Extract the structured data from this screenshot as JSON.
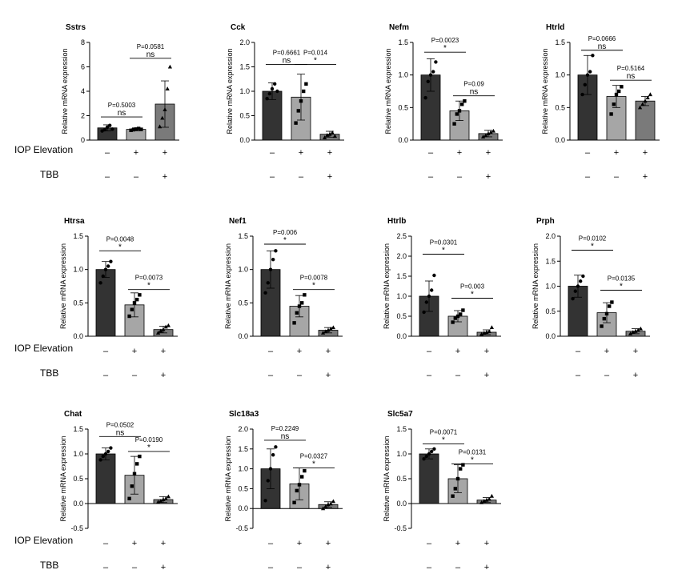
{
  "row_labels": {
    "iop": "IOP Elevation",
    "tbb": "TBB"
  },
  "colors": {
    "bar_fills": [
      "#333333",
      "#a6a6a6",
      "#7a7a7a"
    ],
    "bar_stroke": "#000000",
    "text": "#000000"
  },
  "chart_data": [
    {
      "type": "bar",
      "title": "Sstrs",
      "ylabel": "Relative mRNA expression",
      "ylim": [
        0,
        8
      ],
      "yticks": [
        "0",
        "2",
        "4",
        "6",
        "8"
      ],
      "values": [
        1.0,
        0.88,
        2.95
      ],
      "errors": [
        0.25,
        0.12,
        1.9
      ],
      "points": [
        [
          0.75,
          0.85,
          1.05,
          1.2,
          0.9
        ],
        [
          0.8,
          0.85,
          0.9,
          0.95,
          0.88
        ],
        [
          1.1,
          1.8,
          2.5,
          4.2,
          6.0
        ]
      ],
      "markers": [
        "circle",
        "square",
        "triangle"
      ],
      "iop": [
        "–",
        "+",
        "+"
      ],
      "tbb": [
        "–",
        "–",
        "+"
      ],
      "comparisons": [
        {
          "from": 0,
          "to": 1,
          "y": 1.9,
          "p": "P=0.5003",
          "sig": "ns"
        },
        {
          "from": 1,
          "to": 2,
          "y": 6.7,
          "p": "P=0.0581",
          "sig": "ns"
        }
      ]
    },
    {
      "type": "bar",
      "title": "Cck",
      "ylabel": "Relative mRNA expression",
      "ylim": [
        0,
        2.0
      ],
      "yticks": [
        "0.0",
        "0.5",
        "1.0",
        "1.5",
        "2.0"
      ],
      "values": [
        1.0,
        0.88,
        0.12
      ],
      "errors": [
        0.17,
        0.47,
        0.06
      ],
      "points": [
        [
          0.85,
          0.95,
          1.05,
          1.15,
          1.0
        ],
        [
          0.35,
          0.6,
          0.8,
          1.0,
          1.15
        ],
        [
          0.05,
          0.1,
          0.12,
          0.15,
          0.08
        ]
      ],
      "markers": [
        "circle",
        "square",
        "triangle"
      ],
      "iop": [
        "–",
        "+",
        "+"
      ],
      "tbb": [
        "–",
        "–",
        "+"
      ],
      "comparisons": [
        {
          "from": 0,
          "to": 1,
          "y": 1.55,
          "p": "P=0.6661",
          "sig": "ns"
        },
        {
          "from": 1,
          "to": 2,
          "y": 1.55,
          "p": "P=0.014",
          "sig": "*"
        }
      ]
    },
    {
      "type": "bar",
      "title": "Nefm",
      "ylabel": "Relative mRNA expression",
      "ylim": [
        0,
        1.5
      ],
      "yticks": [
        "0.0",
        "0.5",
        "1.0",
        "1.5"
      ],
      "values": [
        1.0,
        0.45,
        0.1
      ],
      "errors": [
        0.25,
        0.15,
        0.05
      ],
      "points": [
        [
          0.65,
          0.9,
          1.0,
          1.05,
          1.2
        ],
        [
          0.25,
          0.4,
          0.45,
          0.55,
          0.6
        ],
        [
          0.05,
          0.07,
          0.1,
          0.12,
          0.14
        ]
      ],
      "markers": [
        "circle",
        "square",
        "triangle"
      ],
      "iop": [
        "–",
        "+",
        "+"
      ],
      "tbb": [
        "–",
        "–",
        "+"
      ],
      "comparisons": [
        {
          "from": 0,
          "to": 1,
          "y": 1.35,
          "p": "P=0.0023",
          "sig": "*"
        },
        {
          "from": 1,
          "to": 2,
          "y": 0.68,
          "p": "P=0.09",
          "sig": "ns"
        }
      ]
    },
    {
      "type": "bar",
      "title": "Htrld",
      "ylabel": "Relative mRNA expression",
      "ylim": [
        0,
        1.5
      ],
      "yticks": [
        "0.0",
        "0.5",
        "1.0",
        "1.5"
      ],
      "values": [
        1.0,
        0.67,
        0.6
      ],
      "errors": [
        0.3,
        0.17,
        0.07
      ],
      "points": [
        [
          0.7,
          0.85,
          1.0,
          1.05,
          1.3
        ],
        [
          0.4,
          0.55,
          0.7,
          0.75,
          0.82
        ],
        [
          0.5,
          0.55,
          0.6,
          0.65,
          0.7
        ]
      ],
      "markers": [
        "circle",
        "square",
        "triangle"
      ],
      "iop": [
        "–",
        "+",
        "+"
      ],
      "tbb": [
        "–",
        "–",
        "+"
      ],
      "comparisons": [
        {
          "from": 0,
          "to": 1,
          "y": 1.38,
          "p": "P=0.0666",
          "sig": "ns"
        },
        {
          "from": 1,
          "to": 2,
          "y": 0.92,
          "p": "P=0.5164",
          "sig": "ns"
        }
      ]
    },
    {
      "type": "bar",
      "title": "Htrsa",
      "ylabel": "Relative mRNA expression",
      "ylim": [
        0,
        1.5
      ],
      "yticks": [
        "0.0",
        "0.5",
        "1.0",
        "1.5"
      ],
      "values": [
        1.0,
        0.47,
        0.1
      ],
      "errors": [
        0.12,
        0.18,
        0.05
      ],
      "points": [
        [
          0.8,
          0.9,
          1.0,
          1.05,
          1.12
        ],
        [
          0.3,
          0.4,
          0.5,
          0.55,
          0.62
        ],
        [
          0.05,
          0.08,
          0.1,
          0.14,
          0.16
        ]
      ],
      "markers": [
        "circle",
        "square",
        "triangle"
      ],
      "iop": [
        "–",
        "+",
        "+"
      ],
      "tbb": [
        "–",
        "–",
        "+"
      ],
      "comparisons": [
        {
          "from": 0,
          "to": 1,
          "y": 1.28,
          "p": "P=0.0048",
          "sig": "*"
        },
        {
          "from": 1,
          "to": 2,
          "y": 0.7,
          "p": "P=0.0073",
          "sig": "*"
        }
      ]
    },
    {
      "type": "bar",
      "title": "Nef1",
      "ylabel": "Relative mRNA expression",
      "ylim": [
        0,
        1.5
      ],
      "yticks": [
        "0.0",
        "0.5",
        "1.0",
        "1.5"
      ],
      "values": [
        1.0,
        0.45,
        0.09
      ],
      "errors": [
        0.28,
        0.16,
        0.04
      ],
      "points": [
        [
          0.65,
          0.8,
          1.0,
          1.15,
          1.28
        ],
        [
          0.2,
          0.35,
          0.45,
          0.5,
          0.62
        ],
        [
          0.05,
          0.07,
          0.09,
          0.11,
          0.13
        ]
      ],
      "markers": [
        "circle",
        "square",
        "triangle"
      ],
      "iop": [
        "–",
        "+",
        "+"
      ],
      "tbb": [
        "–",
        "–",
        "+"
      ],
      "comparisons": [
        {
          "from": 0,
          "to": 1,
          "y": 1.38,
          "p": "P=0.006",
          "sig": "*"
        },
        {
          "from": 1,
          "to": 2,
          "y": 0.7,
          "p": "P=0.0078",
          "sig": "*"
        }
      ]
    },
    {
      "type": "bar",
      "title": "Htrlb",
      "ylabel": "Relative mRNA expression",
      "ylim": [
        0,
        2.5
      ],
      "yticks": [
        "0.0",
        "0.5",
        "1.0",
        "1.5",
        "2.0",
        "2.5"
      ],
      "values": [
        1.0,
        0.5,
        0.1
      ],
      "errors": [
        0.38,
        0.14,
        0.06
      ],
      "points": [
        [
          0.6,
          0.85,
          1.0,
          1.15,
          1.52
        ],
        [
          0.35,
          0.45,
          0.5,
          0.55,
          0.65
        ],
        [
          0.05,
          0.08,
          0.1,
          0.12,
          0.22
        ]
      ],
      "markers": [
        "circle",
        "square",
        "triangle"
      ],
      "iop": [
        "–",
        "+",
        "+"
      ],
      "tbb": [
        "–",
        "–",
        "+"
      ],
      "comparisons": [
        {
          "from": 0,
          "to": 1,
          "y": 2.05,
          "p": "P=0.0301",
          "sig": "*"
        },
        {
          "from": 1,
          "to": 2,
          "y": 0.95,
          "p": "P=0.003",
          "sig": "*"
        }
      ]
    },
    {
      "type": "bar",
      "title": "Prph",
      "ylabel": "Relative mRNA expression",
      "ylim": [
        0,
        2.0
      ],
      "yticks": [
        "0.0",
        "0.5",
        "1.0",
        "1.5",
        "2.0"
      ],
      "values": [
        1.0,
        0.47,
        0.1
      ],
      "errors": [
        0.22,
        0.2,
        0.05
      ],
      "points": [
        [
          0.75,
          0.9,
          1.0,
          1.1,
          1.2
        ],
        [
          0.2,
          0.35,
          0.45,
          0.6,
          0.68
        ],
        [
          0.05,
          0.08,
          0.1,
          0.12,
          0.15
        ]
      ],
      "markers": [
        "circle",
        "square",
        "triangle"
      ],
      "iop": [
        "–",
        "+",
        "+"
      ],
      "tbb": [
        "–",
        "–",
        "+"
      ],
      "comparisons": [
        {
          "from": 0,
          "to": 1,
          "y": 1.72,
          "p": "P=0.0102",
          "sig": "*"
        },
        {
          "from": 1,
          "to": 2,
          "y": 0.92,
          "p": "P=0.0135",
          "sig": "*"
        }
      ]
    },
    {
      "type": "bar",
      "title": "Chat",
      "ylabel": "Relative mRNA expression",
      "ylim": [
        -0.5,
        1.5
      ],
      "yticks": [
        "-0.5",
        "0.0",
        "0.5",
        "1.0",
        "1.5"
      ],
      "values": [
        1.0,
        0.57,
        0.08
      ],
      "errors": [
        0.12,
        0.38,
        0.06
      ],
      "points": [
        [
          0.88,
          0.95,
          1.0,
          1.05,
          1.12
        ],
        [
          0.1,
          0.35,
          0.6,
          0.8,
          0.95
        ],
        [
          0.03,
          0.05,
          0.08,
          0.1,
          0.14
        ]
      ],
      "markers": [
        "circle",
        "square",
        "triangle"
      ],
      "iop": [
        "–",
        "+",
        "+"
      ],
      "tbb": [
        "–",
        "–",
        "+"
      ],
      "comparisons": [
        {
          "from": 0,
          "to": 1,
          "y": 1.35,
          "p": "P=0.0502",
          "sig": "ns"
        },
        {
          "from": 1,
          "to": 2,
          "y": 1.05,
          "p": "P=0.0190",
          "sig": "*"
        }
      ]
    },
    {
      "type": "bar",
      "title": "Slc18a3",
      "ylabel": "Relative mRNA expression",
      "ylim": [
        -0.5,
        2.0
      ],
      "yticks": [
        "-0.5",
        "0.0",
        "0.5",
        "1.0",
        "1.5",
        "2.0"
      ],
      "values": [
        1.0,
        0.62,
        0.1
      ],
      "errors": [
        0.5,
        0.4,
        0.07
      ],
      "points": [
        [
          0.2,
          0.7,
          1.0,
          1.35,
          1.55
        ],
        [
          0.15,
          0.45,
          0.6,
          0.8,
          0.95
        ],
        [
          0.0,
          0.05,
          0.1,
          0.12,
          0.18
        ]
      ],
      "markers": [
        "circle",
        "square",
        "triangle"
      ],
      "iop": [
        "–",
        "+",
        "+"
      ],
      "tbb": [
        "–",
        "–",
        "+"
      ],
      "comparisons": [
        {
          "from": 0,
          "to": 1,
          "y": 1.72,
          "p": "P=0.2249",
          "sig": "ns"
        },
        {
          "from": 1,
          "to": 2,
          "y": 1.02,
          "p": "P=0.0327",
          "sig": "*"
        }
      ]
    },
    {
      "type": "bar",
      "title": "Slc5a7",
      "ylabel": "Relative mRNA expression",
      "ylim": [
        -0.5,
        1.5
      ],
      "yticks": [
        "-0.5",
        "0.0",
        "0.5",
        "1.0",
        "1.5"
      ],
      "values": [
        1.0,
        0.5,
        0.07
      ],
      "errors": [
        0.1,
        0.28,
        0.05
      ],
      "points": [
        [
          0.9,
          0.95,
          1.0,
          1.05,
          1.1
        ],
        [
          0.15,
          0.3,
          0.5,
          0.7,
          0.78
        ],
        [
          0.02,
          0.05,
          0.07,
          0.09,
          0.15
        ]
      ],
      "markers": [
        "circle",
        "square",
        "triangle"
      ],
      "iop": [
        "–",
        "+",
        "+"
      ],
      "tbb": [
        "–",
        "–",
        "+"
      ],
      "comparisons": [
        {
          "from": 0,
          "to": 1,
          "y": 1.2,
          "p": "P=0.0071",
          "sig": "*"
        },
        {
          "from": 1,
          "to": 2,
          "y": 0.8,
          "p": "P=0.0131",
          "sig": "*"
        }
      ]
    }
  ]
}
